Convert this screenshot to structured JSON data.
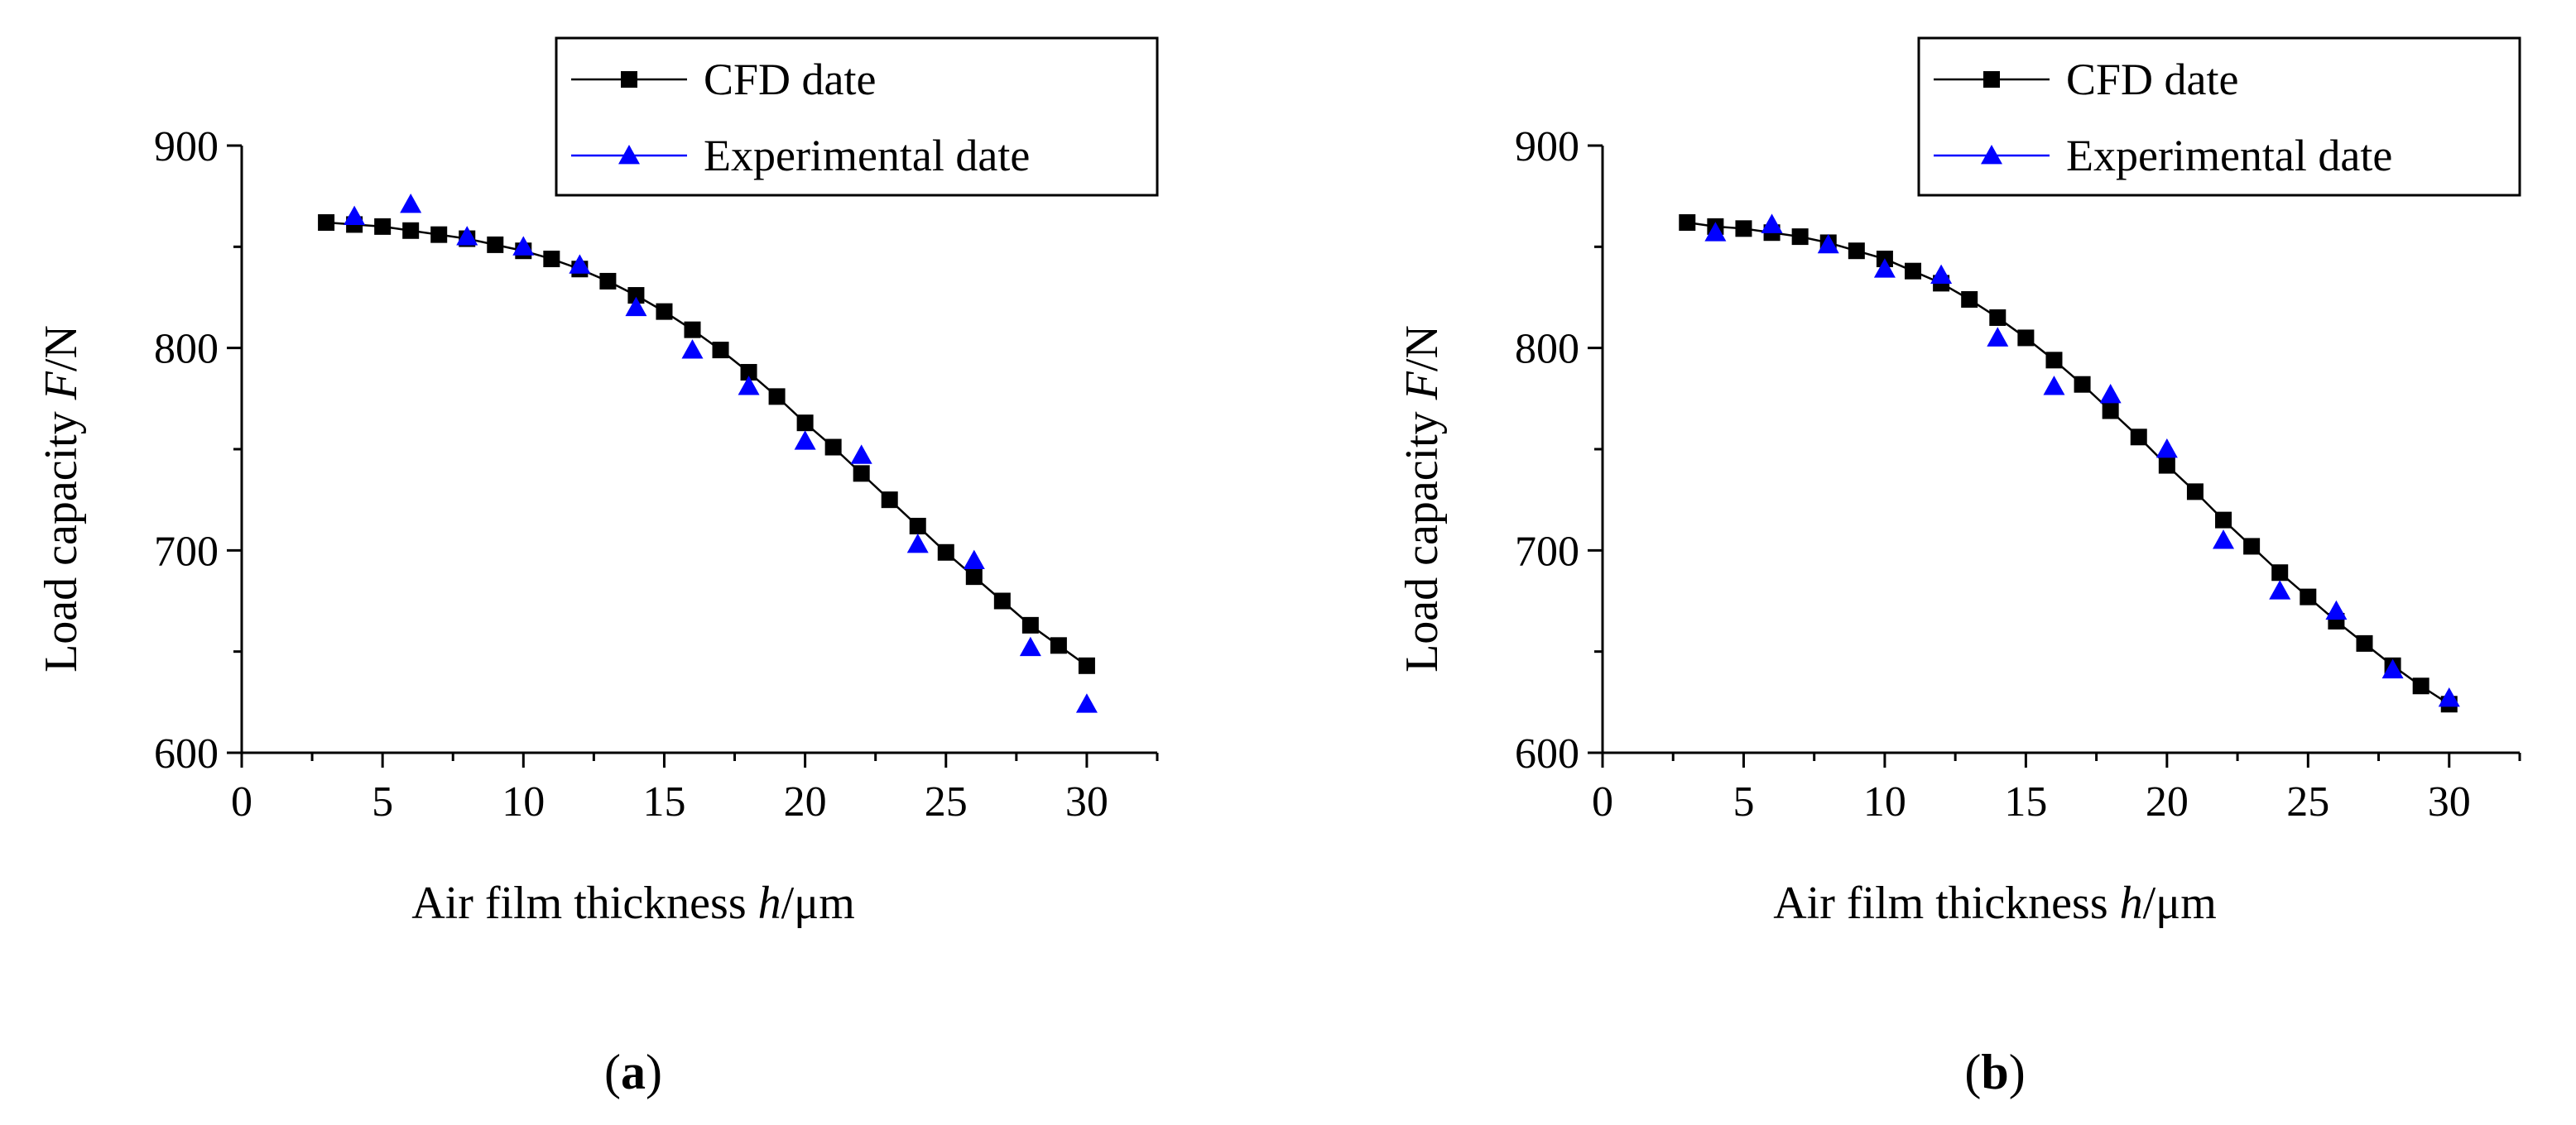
{
  "figure_type": "two-panel line chart",
  "colors": {
    "cfd_series": "#000000",
    "experimental_series": "#0000ff",
    "axis": "#000000",
    "background": "#ffffff"
  },
  "chart_data": [
    {
      "type": "line",
      "panel_label": "a",
      "title": "",
      "xlabel": "Air film thickness h/μm",
      "xlabel_parts": {
        "before": "Air film thickness ",
        "italic": "h",
        "after": "/μm"
      },
      "ylabel": "Load capacity F/N",
      "ylabel_parts": {
        "before": "Load capacity ",
        "italic": "F",
        "after": "/N"
      },
      "xlim": [
        0,
        32.5
      ],
      "ylim": [
        600,
        900
      ],
      "xticks": [
        0,
        5,
        10,
        15,
        20,
        25,
        30
      ],
      "yticks": [
        600,
        700,
        800,
        900
      ],
      "grid": false,
      "legend_position": "top-right",
      "series": [
        {
          "name": "CFD date",
          "style": "line-with-square-markers",
          "color": "#000000",
          "x": [
            3,
            4,
            5,
            6,
            7,
            8,
            9,
            10,
            11,
            12,
            13,
            14,
            15,
            16,
            17,
            18,
            19,
            20,
            21,
            22,
            23,
            24,
            25,
            26,
            27,
            28,
            29,
            30
          ],
          "y": [
            862,
            861,
            860,
            858,
            856,
            854,
            851,
            848,
            844,
            839,
            833,
            826,
            818,
            809,
            799,
            788,
            776,
            763,
            751,
            738,
            725,
            712,
            699,
            687,
            675,
            663,
            653,
            643
          ]
        },
        {
          "name": "Experimental date",
          "style": "triangle-markers",
          "color": "#0000ff",
          "x": [
            4,
            6,
            8,
            10,
            12,
            14,
            16,
            18,
            20,
            22,
            24,
            26,
            28,
            30
          ],
          "y": [
            865,
            871,
            855,
            850,
            841,
            820,
            799,
            781,
            754,
            747,
            703,
            695,
            652,
            624
          ]
        }
      ]
    },
    {
      "type": "line",
      "panel_label": "b",
      "title": "",
      "xlabel": "Air film thickness h/μm",
      "xlabel_parts": {
        "before": "Air film thickness ",
        "italic": "h",
        "after": "/μm"
      },
      "ylabel": "Load capacity F/N",
      "ylabel_parts": {
        "before": "Load capacity ",
        "italic": "F",
        "after": "/N"
      },
      "xlim": [
        0,
        32.5
      ],
      "ylim": [
        600,
        900
      ],
      "xticks": [
        0,
        5,
        10,
        15,
        20,
        25,
        30
      ],
      "yticks": [
        600,
        700,
        800,
        900
      ],
      "grid": false,
      "legend_position": "top-right",
      "series": [
        {
          "name": "CFD date",
          "style": "line-with-square-markers",
          "color": "#000000",
          "x": [
            3,
            4,
            5,
            6,
            7,
            8,
            9,
            10,
            11,
            12,
            13,
            14,
            15,
            16,
            17,
            18,
            19,
            20,
            21,
            22,
            23,
            24,
            25,
            26,
            27,
            28,
            29,
            30
          ],
          "y": [
            862,
            860,
            859,
            857,
            855,
            852,
            848,
            844,
            838,
            832,
            824,
            815,
            805,
            794,
            782,
            769,
            756,
            742,
            729,
            715,
            702,
            689,
            677,
            665,
            654,
            643,
            633,
            624
          ]
        },
        {
          "name": "Experimental date",
          "style": "triangle-markers",
          "color": "#0000ff",
          "x": [
            4,
            6,
            8,
            10,
            12,
            14,
            16,
            18,
            20,
            22,
            24,
            26,
            28,
            30
          ],
          "y": [
            857,
            861,
            851,
            839,
            836,
            805,
            781,
            777,
            750,
            705,
            680,
            670,
            641,
            627
          ]
        }
      ]
    }
  ]
}
